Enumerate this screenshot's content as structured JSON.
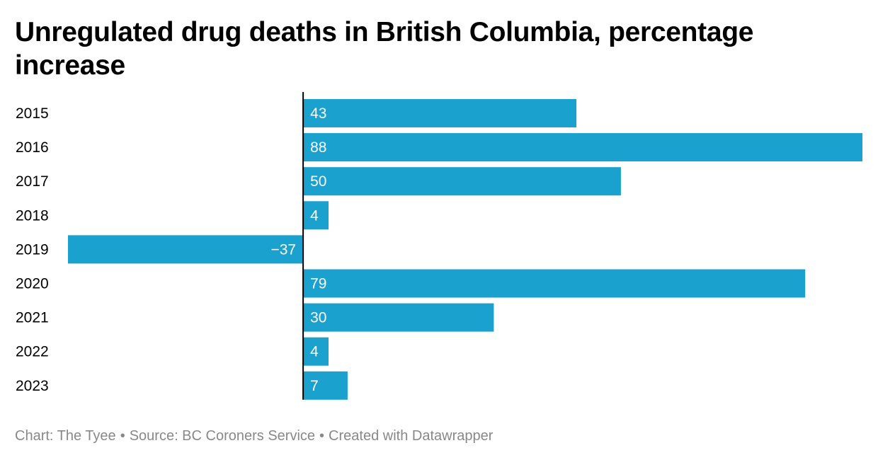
{
  "chart_data": {
    "type": "bar",
    "orientation": "horizontal",
    "title": "Unregulated drug deaths in British Columbia, percentage increase",
    "categories": [
      "2015",
      "2016",
      "2017",
      "2018",
      "2019",
      "2020",
      "2021",
      "2022",
      "2023"
    ],
    "values": [
      43,
      88,
      50,
      4,
      -37,
      79,
      30,
      4,
      7
    ],
    "value_labels": [
      "43",
      "88",
      "50",
      "4",
      "−37",
      "79",
      "30",
      "4",
      "7"
    ],
    "xlabel": "",
    "ylabel": "",
    "xlim": [
      -37,
      88
    ],
    "grid": false,
    "legend": "none",
    "bar_color": "#1aa1cd",
    "axis_color": "#000000"
  },
  "footer": {
    "chart_credit": "Chart: The Tyee",
    "source": "Source: BC Coroners Service",
    "created_with": "Created with Datawrapper",
    "separator": "•"
  }
}
